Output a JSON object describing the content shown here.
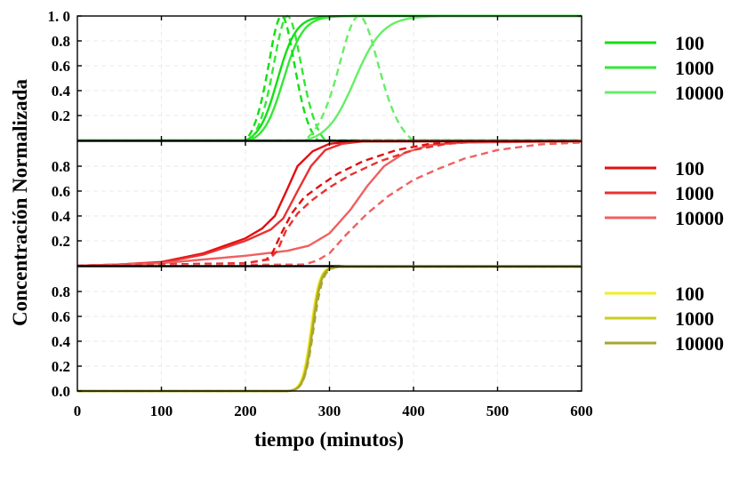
{
  "chart_data": {
    "type": "line",
    "xlabel": "tiempo (minutos)",
    "ylabel": "Concentración Normalizada",
    "xlim": [
      0,
      600
    ],
    "x_ticks": [
      "0",
      "100",
      "200",
      "300",
      "400",
      "500",
      "600"
    ],
    "grid": true,
    "legend_position": "right of each panel",
    "panels": [
      {
        "ylim": [
          0,
          1.0
        ],
        "y_ticks": [
          "0.2",
          "0.4",
          "0.6",
          "0.8",
          "1. 0"
        ],
        "legend": [
          {
            "label": "100",
            "color": "#11e011"
          },
          {
            "label": "1000",
            "color": "#33e833"
          },
          {
            "label": "10000",
            "color": "#66ee66"
          }
        ],
        "series": [
          {
            "color": "#11e011",
            "style": "solid",
            "shape": "sigmoid",
            "x0": 238,
            "k": 0.09,
            "onset": 200
          },
          {
            "color": "#33e833",
            "style": "solid",
            "shape": "sigmoid",
            "x0": 245,
            "k": 0.085,
            "onset": 205
          },
          {
            "color": "#66ee66",
            "style": "solid",
            "shape": "sigmoid",
            "x0": 330,
            "k": 0.06,
            "onset": 270
          },
          {
            "color": "#11e011",
            "style": "dashed",
            "shape": "peak",
            "x0": 243,
            "k": 0.09,
            "onset": 200
          },
          {
            "color": "#33e833",
            "style": "dashed",
            "shape": "peak",
            "x0": 250,
            "k": 0.085,
            "onset": 205
          },
          {
            "color": "#66ee66",
            "style": "dashed",
            "shape": "peak",
            "x0": 335,
            "k": 0.06,
            "onset": 270
          }
        ]
      },
      {
        "ylim": [
          0,
          1.0
        ],
        "y_ticks": [
          "0.2",
          "0.4",
          "0.6",
          "0.8"
        ],
        "legend": [
          {
            "label": "100",
            "color": "#e01010"
          },
          {
            "label": "1000",
            "color": "#ea3030"
          },
          {
            "label": "10000",
            "color": "#f06060"
          }
        ],
        "series": [
          {
            "color": "#e01010",
            "style": "solid",
            "points": [
              [
                0,
                0
              ],
              [
                50,
                0.01
              ],
              [
                100,
                0.03
              ],
              [
                150,
                0.1
              ],
              [
                200,
                0.22
              ],
              [
                220,
                0.3
              ],
              [
                235,
                0.4
              ],
              [
                250,
                0.62
              ],
              [
                262,
                0.8
              ],
              [
                280,
                0.92
              ],
              [
                300,
                0.98
              ],
              [
                330,
                1.0
              ],
              [
                600,
                1.0
              ]
            ]
          },
          {
            "color": "#ea3030",
            "style": "solid",
            "points": [
              [
                0,
                0
              ],
              [
                50,
                0.01
              ],
              [
                100,
                0.025
              ],
              [
                150,
                0.09
              ],
              [
                200,
                0.2
              ],
              [
                230,
                0.29
              ],
              [
                245,
                0.38
              ],
              [
                262,
                0.6
              ],
              [
                278,
                0.8
              ],
              [
                295,
                0.93
              ],
              [
                315,
                0.98
              ],
              [
                340,
                1.0
              ],
              [
                600,
                1.0
              ]
            ]
          },
          {
            "color": "#f06060",
            "style": "solid",
            "points": [
              [
                0,
                0
              ],
              [
                100,
                0.02
              ],
              [
                150,
                0.05
              ],
              [
                200,
                0.08
              ],
              [
                250,
                0.12
              ],
              [
                275,
                0.16
              ],
              [
                300,
                0.26
              ],
              [
                325,
                0.45
              ],
              [
                345,
                0.64
              ],
              [
                365,
                0.8
              ],
              [
                390,
                0.91
              ],
              [
                420,
                0.97
              ],
              [
                460,
                0.99
              ],
              [
                600,
                1.0
              ]
            ]
          },
          {
            "color": "#e01010",
            "style": "dashed",
            "points": [
              [
                0,
                0
              ],
              [
                200,
                0.02
              ],
              [
                225,
                0.05
              ],
              [
                232,
                0.1
              ],
              [
                242,
                0.25
              ],
              [
                255,
                0.42
              ],
              [
                270,
                0.55
              ],
              [
                290,
                0.65
              ],
              [
                310,
                0.74
              ],
              [
                340,
                0.84
              ],
              [
                380,
                0.93
              ],
              [
                420,
                0.98
              ],
              [
                460,
                1.0
              ],
              [
                600,
                1.0
              ]
            ]
          },
          {
            "color": "#ea3030",
            "style": "dashed",
            "points": [
              [
                0,
                0
              ],
              [
                200,
                0.02
              ],
              [
                228,
                0.05
              ],
              [
                238,
                0.12
              ],
              [
                248,
                0.28
              ],
              [
                262,
                0.42
              ],
              [
                278,
                0.52
              ],
              [
                300,
                0.63
              ],
              [
                325,
                0.73
              ],
              [
                360,
                0.84
              ],
              [
                400,
                0.93
              ],
              [
                440,
                0.98
              ],
              [
                480,
                1.0
              ],
              [
                600,
                1.0
              ]
            ]
          },
          {
            "color": "#f06060",
            "style": "dashed",
            "points": [
              [
                0,
                0
              ],
              [
                270,
                0.01
              ],
              [
                285,
                0.04
              ],
              [
                300,
                0.1
              ],
              [
                320,
                0.25
              ],
              [
                345,
                0.42
              ],
              [
                370,
                0.56
              ],
              [
                400,
                0.69
              ],
              [
                430,
                0.78
              ],
              [
                460,
                0.86
              ],
              [
                500,
                0.93
              ],
              [
                550,
                0.975
              ],
              [
                600,
                0.99
              ]
            ]
          }
        ]
      },
      {
        "ylim": [
          0,
          1.0
        ],
        "y_ticks": [
          "0.0",
          "0.2",
          "0.4",
          "0.6",
          "0.8"
        ],
        "legend": [
          {
            "label": "100",
            "color": "#f2ee20"
          },
          {
            "label": "1000",
            "color": "#cccc22"
          },
          {
            "label": "10000",
            "color": "#aaa52e"
          }
        ],
        "series": [
          {
            "color": "#f2ee20",
            "style": "solid",
            "shape": "sigmoid",
            "x0": 278,
            "k": 0.2,
            "onset": 250
          },
          {
            "color": "#cccc22",
            "style": "solid",
            "shape": "sigmoid",
            "x0": 279,
            "k": 0.2,
            "onset": 250
          },
          {
            "color": "#aaa52e",
            "style": "solid",
            "shape": "sigmoid",
            "x0": 280,
            "k": 0.2,
            "onset": 250
          },
          {
            "color": "#aaa52e",
            "style": "dashed",
            "shape": "sigmoid",
            "x0": 281,
            "k": 0.19,
            "onset": 250
          }
        ]
      }
    ]
  }
}
